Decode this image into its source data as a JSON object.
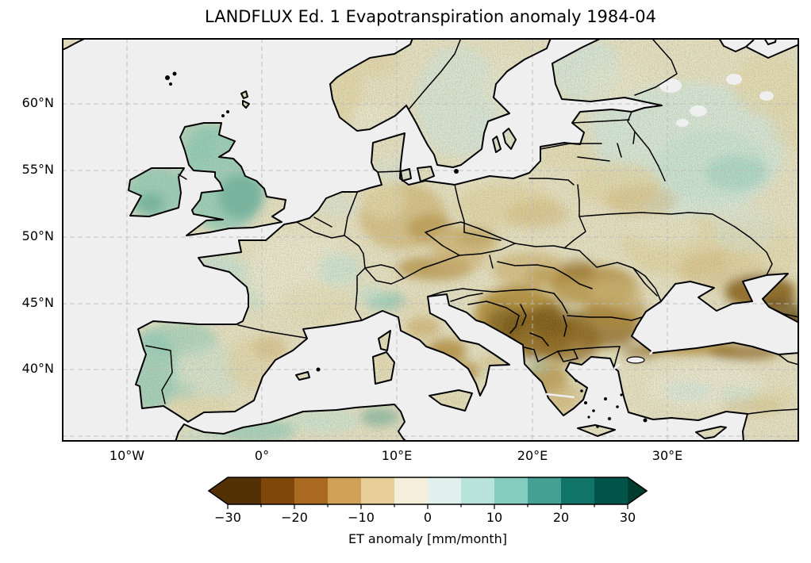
{
  "figure": {
    "title": "LANDFLUX Ed. 1 Evapotranspiration anomaly 1984-04",
    "background": "#ffffff"
  },
  "axes": {
    "x_tick_labels": [
      "10°W",
      "0°",
      "10°E",
      "20°E",
      "30°E"
    ],
    "y_tick_labels": [
      "60°N",
      "55°N",
      "50°N",
      "45°N",
      "40°N"
    ],
    "gridline_style": "dashed",
    "frame_color": "#000000"
  },
  "colorbar": {
    "label": "ET anomaly [mm/month]",
    "tick_labels": [
      "−30",
      "−20",
      "−10",
      "0",
      "10",
      "20",
      "30"
    ],
    "tick_values": [
      -30,
      -20,
      -10,
      0,
      10,
      20,
      30
    ],
    "minor_tick_values": [
      -25,
      -15,
      -5,
      5,
      15,
      25
    ],
    "levels": [
      -30,
      -25,
      -20,
      -15,
      -10,
      -5,
      0,
      5,
      10,
      15,
      20,
      25,
      30
    ],
    "colors": [
      "#543005",
      "#7f470a",
      "#a96a1f",
      "#cfa257",
      "#e8cf9a",
      "#f5eeda",
      "#e1f0ed",
      "#b7e3da",
      "#83ccbf",
      "#45a094",
      "#117468",
      "#02544a"
    ],
    "under_color": "#543005",
    "over_color": "#003c30",
    "extend": "both",
    "colormap": "BrBG"
  },
  "palette": {
    "ocean": "#efefef",
    "land_base": "#f1e8cf",
    "grid": "#bcbcbc",
    "coast": "#000000",
    "teal_light": "#cde9e1",
    "teal_mid": "#8fd0c3",
    "teal_strong": "#47a093",
    "tan_light": "#ecdcb0",
    "tan_mid": "#d9b878",
    "brown_mid": "#b5862f",
    "brown_dark": "#8a5a12",
    "brown_deepest": "#5f3a06",
    "aqua_pale": "#ddeeea",
    "cream": "#f5efdc"
  },
  "chart_data": {
    "type": "heatmap",
    "title": "LANDFLUX Ed. 1 Evapotranspiration anomaly 1984-04",
    "projection": "PlateCarree (equirectangular)",
    "lon_range_deg": [
      -15,
      40
    ],
    "lat_range_deg": [
      34.6,
      65
    ],
    "value_units": "mm/month",
    "value_range_shown": [
      -30,
      30
    ],
    "colormap": "BrBG",
    "legend_position": "bottom",
    "grid": "dashed, 10° longitude × 5° latitude",
    "regional_anomalies_estimated": [
      {
        "region": "Ireland and Great Britain",
        "value_mm_month": "+5 to +15"
      },
      {
        "region": "Western France (Brittany / Atlantic coast)",
        "value_mm_month": "0 to +10"
      },
      {
        "region": "Portugal and northwest Spain",
        "value_mm_month": "+5 to +15"
      },
      {
        "region": "Eastern Spain (Ebro valley)",
        "value_mm_month": "-10 to 0"
      },
      {
        "region": "Germany and central Europe",
        "value_mm_month": "-15 to -5"
      },
      {
        "region": "Poland",
        "value_mm_month": "-10 to 0"
      },
      {
        "region": "Alps / northwest Italy",
        "value_mm_month": "0 to +10"
      },
      {
        "region": "Italian peninsula (Apennines)",
        "value_mm_month": "-20 to -5"
      },
      {
        "region": "Balkans (Bosnia, Serbia, Bulgaria, Romania)",
        "value_mm_month": "-30 to -15"
      },
      {
        "region": "Greece",
        "value_mm_month": "-20 to -5"
      },
      {
        "region": "Scandinavia interior",
        "value_mm_month": "-5 to +5"
      },
      {
        "region": "Norway coast",
        "value_mm_month": "-10 to 0"
      },
      {
        "region": "Finland and northwest Russia",
        "value_mm_month": "0 to +10"
      },
      {
        "region": "Belarus and Ukraine",
        "value_mm_month": "-15 to 0"
      },
      {
        "region": "Caucasus",
        "value_mm_month": "-30 to -15"
      },
      {
        "region": "Northern Turkey (Black Sea coast)",
        "value_mm_month": "-25 to -10"
      },
      {
        "region": "Central Turkey",
        "value_mm_month": "-5 to +5"
      },
      {
        "region": "Northwest Africa coast",
        "value_mm_month": "0 to +10"
      }
    ]
  }
}
